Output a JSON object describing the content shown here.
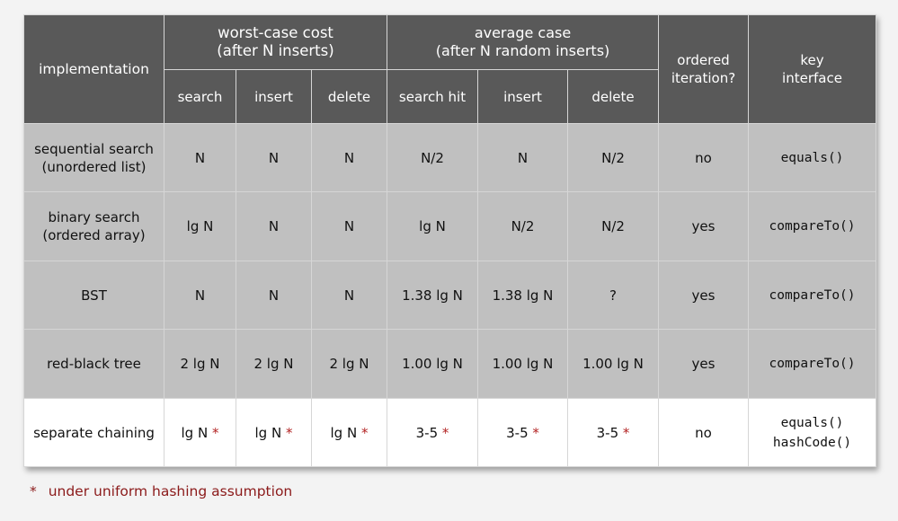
{
  "header": {
    "implementation": "implementation",
    "worst_case_line1": "worst-case cost",
    "worst_case_line2": "(after N inserts)",
    "average_case_line1": "average case",
    "average_case_line2": "(after N random inserts)",
    "ordered_line1": "ordered",
    "ordered_line2": "iteration?",
    "key_line1": "key",
    "key_line2": "interface",
    "sub": [
      "search",
      "insert",
      "delete",
      "search hit",
      "insert",
      "delete"
    ]
  },
  "rows": [
    {
      "impl": [
        "sequential search",
        "(unordered list)"
      ],
      "cells": [
        "N",
        "N",
        "N",
        "N/2",
        "N",
        "N/2"
      ],
      "ordered": "no",
      "key": [
        "equals()"
      ],
      "starred": false
    },
    {
      "impl": [
        "binary search",
        "(ordered array)"
      ],
      "cells": [
        "lg N",
        "N",
        "N",
        "lg N",
        "N/2",
        "N/2"
      ],
      "ordered": "yes",
      "key": [
        "compareTo()"
      ],
      "starred": false
    },
    {
      "impl": [
        "BST"
      ],
      "cells": [
        "N",
        "N",
        "N",
        "1.38 lg N",
        "1.38 lg N",
        "?"
      ],
      "ordered": "yes",
      "key": [
        "compareTo()"
      ],
      "starred": false
    },
    {
      "impl": [
        "red-black tree"
      ],
      "cells": [
        "2 lg N",
        "2 lg N",
        "2 lg N",
        "1.00 lg N",
        "1.00 lg N",
        "1.00 lg N"
      ],
      "ordered": "yes",
      "key": [
        "compareTo()"
      ],
      "starred": false
    },
    {
      "impl": [
        "separate chaining"
      ],
      "cells": [
        "lg N",
        "lg N",
        "lg N",
        "3-5",
        "3-5",
        "3-5"
      ],
      "ordered": "no",
      "key": [
        "equals()",
        "hashCode()"
      ],
      "starred": true
    }
  ],
  "star_symbol": "*",
  "footnote": {
    "star": "*",
    "text": "under uniform hashing assumption"
  },
  "colors": {
    "header_bg": "#595959",
    "gray_row_bg": "#c0c0c0",
    "white_row_bg": "#ffffff",
    "star": "#b22222",
    "footnote": "#8b1a1a"
  }
}
